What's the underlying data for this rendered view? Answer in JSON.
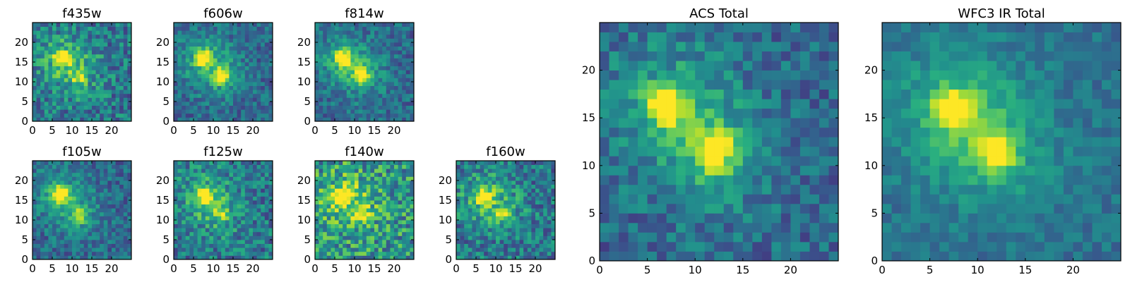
{
  "chart_data": [
    {
      "type": "heatmap",
      "title": "f435w",
      "grid": false,
      "xlim": [
        0,
        25
      ],
      "ylim": [
        0,
        25
      ],
      "xticks": [
        "0",
        "5",
        "10",
        "15",
        "20"
      ],
      "yticks": [
        "0",
        "5",
        "10",
        "15",
        "20"
      ],
      "colormap": "viridis",
      "sources": [
        {
          "x": 7.5,
          "y": 16,
          "rel_peak": 0.9
        },
        {
          "x": 12,
          "y": 11.5,
          "rel_peak": 0.6
        }
      ],
      "noise": "high"
    },
    {
      "type": "heatmap",
      "title": "f606w",
      "grid": false,
      "xlim": [
        0,
        25
      ],
      "ylim": [
        0,
        25
      ],
      "xticks": [
        "0",
        "5",
        "10",
        "15",
        "20"
      ],
      "yticks": [
        "0",
        "5",
        "10",
        "15",
        "20"
      ],
      "colormap": "viridis",
      "sources": [
        {
          "x": 7.5,
          "y": 16,
          "rel_peak": 0.95
        },
        {
          "x": 12,
          "y": 11.5,
          "rel_peak": 0.75
        }
      ],
      "noise": "medium"
    },
    {
      "type": "heatmap",
      "title": "f814w",
      "grid": false,
      "xlim": [
        0,
        25
      ],
      "ylim": [
        0,
        25
      ],
      "xticks": [
        "0",
        "5",
        "10",
        "15",
        "20"
      ],
      "yticks": [
        "0",
        "5",
        "10",
        "15",
        "20"
      ],
      "colormap": "viridis",
      "sources": [
        {
          "x": 7,
          "y": 16,
          "rel_peak": 1.0
        },
        {
          "x": 12,
          "y": 11.5,
          "rel_peak": 0.8
        }
      ],
      "noise": "medium"
    },
    {
      "type": "heatmap",
      "title": "f105w",
      "grid": false,
      "xlim": [
        0,
        25
      ],
      "ylim": [
        0,
        25
      ],
      "xticks": [
        "0",
        "5",
        "10",
        "15",
        "20"
      ],
      "yticks": [
        "0",
        "5",
        "10",
        "15",
        "20"
      ],
      "colormap": "viridis",
      "sources": [
        {
          "x": 7,
          "y": 16.5,
          "rel_peak": 1.0
        },
        {
          "x": 12,
          "y": 11,
          "rel_peak": 0.6
        }
      ],
      "noise": "medium"
    },
    {
      "type": "heatmap",
      "title": "f125w",
      "grid": false,
      "xlim": [
        0,
        25
      ],
      "ylim": [
        0,
        25
      ],
      "xticks": [
        "0",
        "5",
        "10",
        "15",
        "20"
      ],
      "yticks": [
        "0",
        "5",
        "10",
        "15",
        "20"
      ],
      "colormap": "viridis",
      "sources": [
        {
          "x": 8,
          "y": 16,
          "rel_peak": 1.0
        },
        {
          "x": 12,
          "y": 11.5,
          "rel_peak": 0.5
        }
      ],
      "noise": "high"
    },
    {
      "type": "heatmap",
      "title": "f140w",
      "grid": false,
      "xlim": [
        0,
        25
      ],
      "ylim": [
        0,
        25
      ],
      "xticks": [
        "0",
        "5",
        "10",
        "15",
        "20"
      ],
      "yticks": [
        "0",
        "5",
        "10",
        "15",
        "20"
      ],
      "colormap": "viridis",
      "sources": [
        {
          "x": 7,
          "y": 16,
          "rel_peak": 0.9
        },
        {
          "x": 12,
          "y": 12,
          "rel_peak": 0.45
        }
      ],
      "noise": "very-high"
    },
    {
      "type": "heatmap",
      "title": "f160w",
      "grid": false,
      "xlim": [
        0,
        25
      ],
      "ylim": [
        0,
        25
      ],
      "xticks": [
        "0",
        "5",
        "10",
        "15",
        "20"
      ],
      "yticks": [
        "0",
        "5",
        "10",
        "15",
        "20"
      ],
      "colormap": "viridis",
      "sources": [
        {
          "x": 7,
          "y": 16,
          "rel_peak": 1.0
        },
        {
          "x": 12,
          "y": 11.5,
          "rel_peak": 0.5
        }
      ],
      "noise": "high"
    },
    {
      "type": "heatmap",
      "title": "ACS Total",
      "grid": false,
      "xlim": [
        0,
        25
      ],
      "ylim": [
        0,
        25
      ],
      "xticks": [
        "0",
        "5",
        "10",
        "15",
        "20"
      ],
      "yticks": [
        "0",
        "5",
        "10",
        "15",
        "20"
      ],
      "colormap": "viridis",
      "sources": [
        {
          "x": 7,
          "y": 16.5,
          "rel_peak": 1.0
        },
        {
          "x": 12,
          "y": 11.5,
          "rel_peak": 0.95
        }
      ],
      "noise": "medium"
    },
    {
      "type": "heatmap",
      "title": "WFC3 IR Total",
      "grid": false,
      "xlim": [
        0,
        25
      ],
      "ylim": [
        0,
        25
      ],
      "xticks": [
        "0",
        "5",
        "10",
        "15",
        "20"
      ],
      "yticks": [
        "0",
        "5",
        "10",
        "15",
        "20"
      ],
      "colormap": "viridis",
      "sources": [
        {
          "x": 7.5,
          "y": 16,
          "rel_peak": 1.0
        },
        {
          "x": 12,
          "y": 11.5,
          "rel_peak": 0.8
        }
      ],
      "noise": "low"
    }
  ]
}
